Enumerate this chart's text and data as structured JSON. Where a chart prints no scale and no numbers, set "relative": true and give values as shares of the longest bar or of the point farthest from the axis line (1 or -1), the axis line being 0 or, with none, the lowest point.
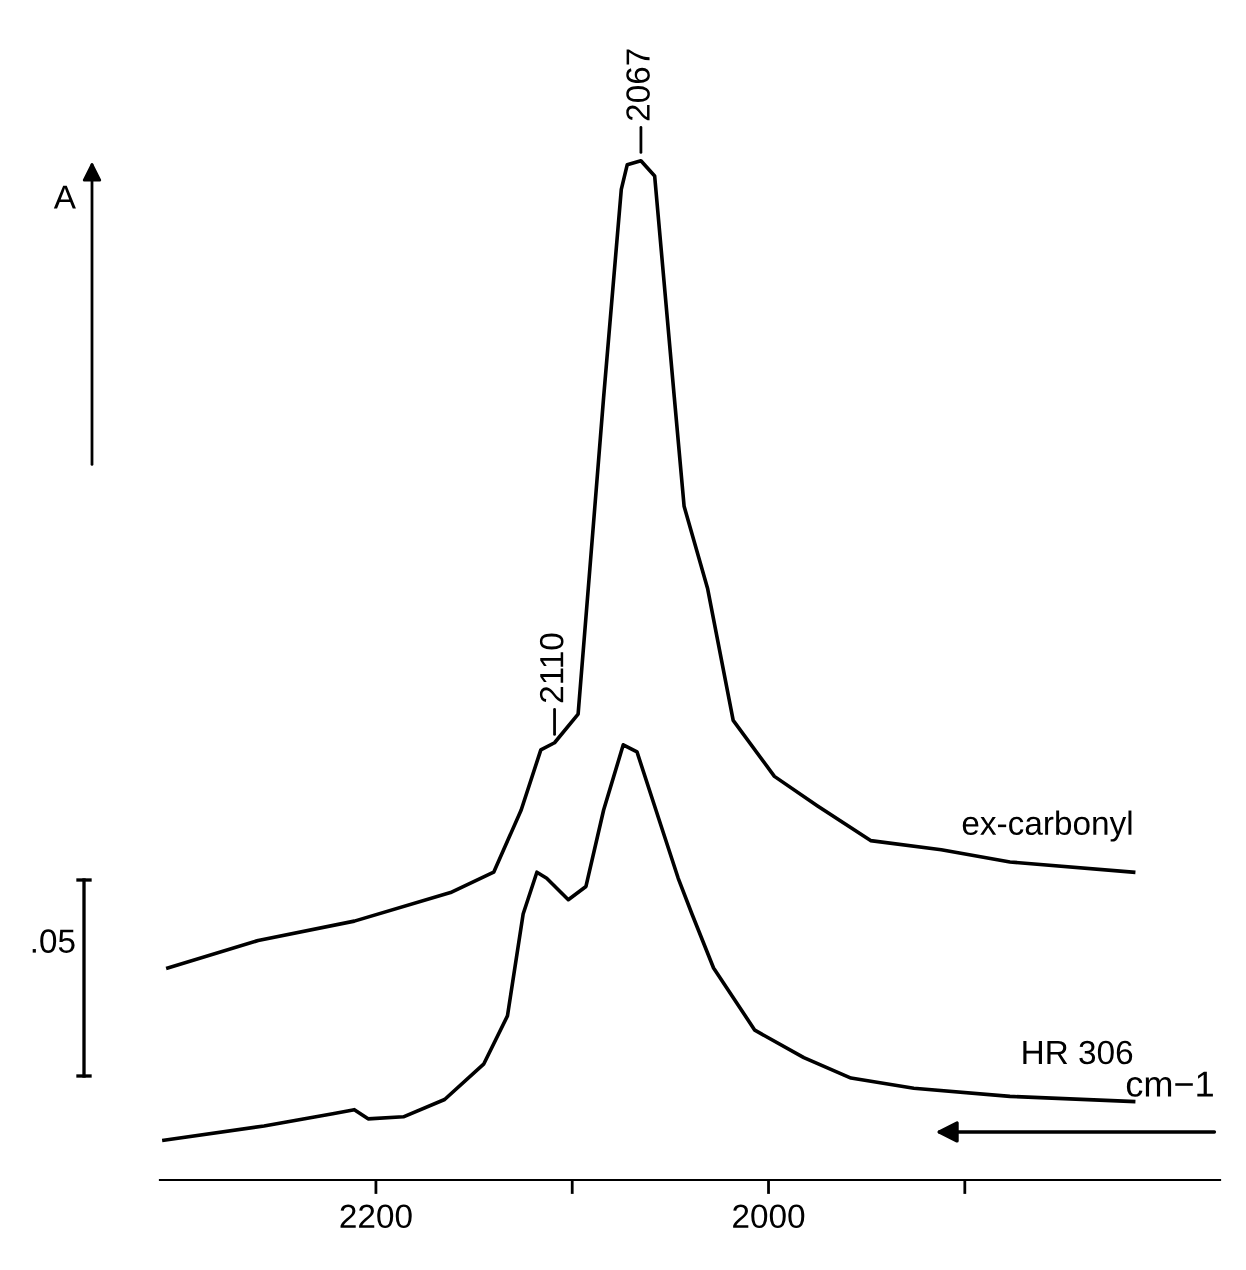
{
  "chart_data": {
    "type": "line",
    "relative": true,
    "xlabel": "cm−1",
    "ylabel": "A",
    "xlim": [
      2310,
      1770
    ],
    "xticks": [
      2200,
      {
        "value": 2100,
        "label": null
      },
      2000,
      {
        "value": 1900,
        "label": null
      }
    ],
    "series": [
      {
        "name": "ex-carbonyl",
        "color": "#000000",
        "x": [
          2306,
          2260,
          2211,
          2162,
          2140,
          2126,
          2116,
          2109,
          2097,
          2091,
          2084,
          2075,
          2072,
          2065,
          2058,
          2048,
          2043,
          2031,
          2018,
          1997,
          1975,
          1948,
          1912,
          1877,
          1814
        ],
        "values": [
          0.208,
          0.235,
          0.254,
          0.282,
          0.302,
          0.363,
          0.422,
          0.429,
          0.457,
          0.6,
          0.768,
          0.972,
          0.996,
          1.0,
          0.985,
          0.768,
          0.661,
          0.58,
          0.451,
          0.396,
          0.367,
          0.333,
          0.324,
          0.312,
          0.302
        ]
      },
      {
        "name": "HR 306",
        "color": "#000000",
        "x": [
          2308,
          2257,
          2222,
          2211,
          2204,
          2186,
          2165,
          2145,
          2133,
          2125,
          2118,
          2113,
          2102,
          2093,
          2084,
          2074,
          2067,
          2055,
          2046,
          2039,
          2028,
          2007,
          1982,
          1958,
          1926,
          1877,
          1814
        ],
        "values": [
          0.039,
          0.053,
          0.065,
          0.069,
          0.06,
          0.062,
          0.079,
          0.114,
          0.161,
          0.261,
          0.302,
          0.296,
          0.275,
          0.288,
          0.363,
          0.427,
          0.42,
          0.349,
          0.296,
          0.261,
          0.208,
          0.147,
          0.12,
          0.1,
          0.09,
          0.082,
          0.077
        ]
      }
    ],
    "annotations": [
      {
        "text": "2110",
        "x": 2109,
        "y": 0.429
      },
      {
        "text": "2067",
        "x": 2065,
        "y": 1.0
      },
      ".05"
    ],
    "grid": false,
    "legend": false,
    "marker": "none",
    "line_style": "solid"
  }
}
